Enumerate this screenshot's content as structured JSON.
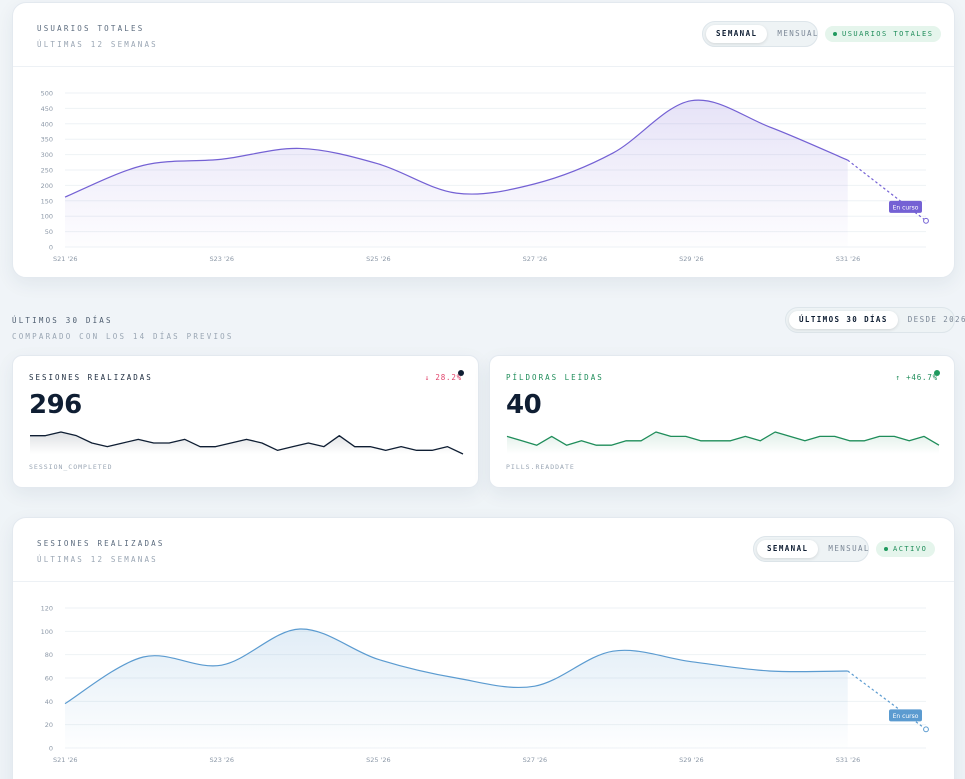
{
  "users_card": {
    "title": "USUARIOS TOTALES",
    "subtitle": "ÚLTIMAS 12 SEMANAS",
    "toggle": [
      "SEMANAL",
      "MENSUAL"
    ],
    "active_toggle": "SEMANAL",
    "badge": "USUARIOS TOTALES",
    "in_progress_label": "En curso",
    "color": "#7461d4"
  },
  "range_section": {
    "title": "ÚLTIMOS 30 DÍAS",
    "subtitle": "COMPARADO CON LOS 14 DÍAS PREVIOS",
    "toggle": [
      "ÚLTIMOS 30 DÍAS",
      "DESDE 2026"
    ],
    "active_toggle": "ÚLTIMOS 30 DÍAS"
  },
  "kpis": [
    {
      "title": "SESIONES REALIZADAS",
      "value": "296",
      "delta": "↓ 28.2%",
      "trend": "down",
      "event": "SESSION_COMPLETED",
      "color": "#0f1e33",
      "spark": [
        5,
        5,
        6,
        5,
        3,
        2,
        3,
        4,
        3,
        3,
        4,
        2,
        2,
        3,
        4,
        3,
        1,
        2,
        3,
        2,
        5,
        2,
        2,
        1,
        2,
        1,
        1,
        2,
        0
      ]
    },
    {
      "title": "PÍLDORAS LEÍDAS",
      "value": "40",
      "delta": "↑ +46.7%",
      "trend": "up",
      "event": "PILLS.READDATE",
      "color": "#1f8d5a",
      "spark": [
        4,
        3,
        2,
        4,
        2,
        3,
        2,
        2,
        3,
        3,
        5,
        4,
        4,
        3,
        3,
        3,
        4,
        3,
        5,
        4,
        3,
        4,
        4,
        3,
        3,
        4,
        4,
        3,
        4,
        2
      ]
    }
  ],
  "sessions_card": {
    "title": "SESIONES REALIZADAS",
    "subtitle": "ÚLTIMAS 12 SEMANAS",
    "toggle": [
      "SEMANAL",
      "MENSUAL"
    ],
    "active_toggle": "SEMANAL",
    "badge": "ACTIVO",
    "in_progress_label": "En curso",
    "color": "#5b9bd0"
  },
  "chart_data": [
    {
      "type": "area",
      "x": [
        "S21 '26",
        "S22 '26",
        "S23 '26",
        "S24 '26",
        "S25 '26",
        "S26 '26",
        "S27 '26",
        "S28 '26",
        "S29 '26",
        "S30 '26",
        "S31 '26",
        "S32 '26"
      ],
      "x_ticks": [
        "S21 '26",
        "S23 '26",
        "S25 '26",
        "S27 '26",
        "S29 '26",
        "S31 '26"
      ],
      "values": [
        162,
        265,
        285,
        320,
        270,
        175,
        205,
        305,
        475,
        390,
        282,
        85
      ],
      "last_point_in_progress": true,
      "ylim": [
        0,
        500
      ],
      "y_ticks": [
        0,
        50,
        100,
        150,
        200,
        250,
        300,
        350,
        400,
        450,
        500
      ],
      "grid": true
    },
    {
      "type": "area",
      "x": [
        "S21 '26",
        "S22 '26",
        "S23 '26",
        "S24 '26",
        "S25 '26",
        "S26 '26",
        "S27 '26",
        "S28 '26",
        "S29 '26",
        "S30 '26",
        "S31 '26",
        "S32 '26"
      ],
      "x_ticks": [
        "S21 '26",
        "S23 '26",
        "S25 '26",
        "S27 '26",
        "S29 '26",
        "S31 '26"
      ],
      "values": [
        38,
        78,
        71,
        102,
        76,
        60,
        53,
        83,
        74,
        66,
        66,
        16
      ],
      "last_point_in_progress": true,
      "ylim": [
        0,
        120
      ],
      "y_ticks": [
        0,
        20,
        40,
        60,
        80,
        100,
        120
      ],
      "grid": true
    }
  ]
}
